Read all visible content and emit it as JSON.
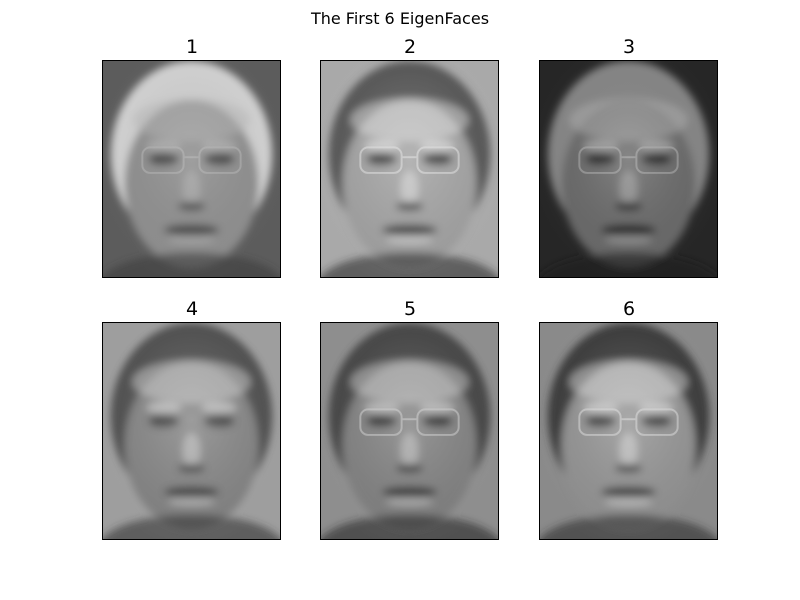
{
  "figure": {
    "title": "The First 6 EigenFaces"
  },
  "panels": [
    {
      "label": "1",
      "bg": "#5c5c5c",
      "face": "#8f8f8f",
      "hair": "#d9d9d9",
      "dark": "#3a3a3a",
      "light": "#bdbdbd",
      "glasses": true
    },
    {
      "label": "2",
      "bg": "#a9a9a9",
      "face": "#9a9a9a",
      "hair": "#4d4d4d",
      "dark": "#2b2b2b",
      "light": "#e6e6e6",
      "glasses": true
    },
    {
      "label": "3",
      "bg": "#262626",
      "face": "#6b6b6b",
      "hair": "#8a8a8a",
      "dark": "#1a1a1a",
      "light": "#bcbcbc",
      "glasses": true
    },
    {
      "label": "4",
      "bg": "#9e9e9e",
      "face": "#7b7b7b",
      "hair": "#474747",
      "dark": "#303030",
      "light": "#d7d7d7",
      "glasses": false
    },
    {
      "label": "5",
      "bg": "#8e8e8e",
      "face": "#7a7a7a",
      "hair": "#3d3d3d",
      "dark": "#242424",
      "light": "#d3d3d3",
      "glasses": true
    },
    {
      "label": "6",
      "bg": "#8a8a8a",
      "face": "#8c8c8c",
      "hair": "#333333",
      "dark": "#2d2d2d",
      "light": "#e0e0e0",
      "glasses": true
    }
  ]
}
